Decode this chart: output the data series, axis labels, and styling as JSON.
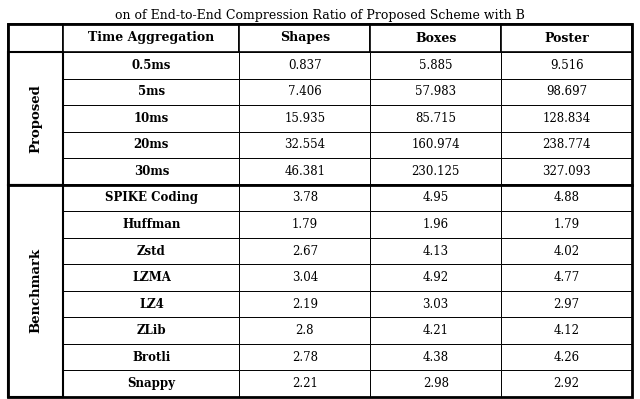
{
  "title": "on of End-to-End Compression Ratio of Proposed Scheme with B",
  "headers": [
    "",
    "Time Aggregation",
    "Shapes",
    "Boxes",
    "Poster"
  ],
  "proposed_label": "Proposed",
  "benchmark_label": "Benchmark",
  "proposed_rows": [
    [
      "0.5ms",
      "0.837",
      "5.885",
      "9.516"
    ],
    [
      "5ms",
      "7.406",
      "57.983",
      "98.697"
    ],
    [
      "10ms",
      "15.935",
      "85.715",
      "128.834"
    ],
    [
      "20ms",
      "32.554",
      "160.974",
      "238.774"
    ],
    [
      "30ms",
      "46.381",
      "230.125",
      "327.093"
    ]
  ],
  "benchmark_rows": [
    [
      "SPIKE Coding",
      "3.78",
      "4.95",
      "4.88"
    ],
    [
      "Huffman",
      "1.79",
      "1.96",
      "1.79"
    ],
    [
      "Zstd",
      "2.67",
      "4.13",
      "4.02"
    ],
    [
      "LZMA",
      "3.04",
      "4.92",
      "4.77"
    ],
    [
      "LZ4",
      "2.19",
      "3.03",
      "2.97"
    ],
    [
      "ZLib",
      "2.8",
      "4.21",
      "4.12"
    ],
    [
      "Brotli",
      "2.78",
      "4.38",
      "4.26"
    ],
    [
      "Snappy",
      "2.21",
      "2.98",
      "2.92"
    ]
  ],
  "background_color": "#ffffff",
  "line_color": "#000000",
  "font_size": 8.5,
  "header_font_size": 9.0,
  "label_font_size": 9.5
}
